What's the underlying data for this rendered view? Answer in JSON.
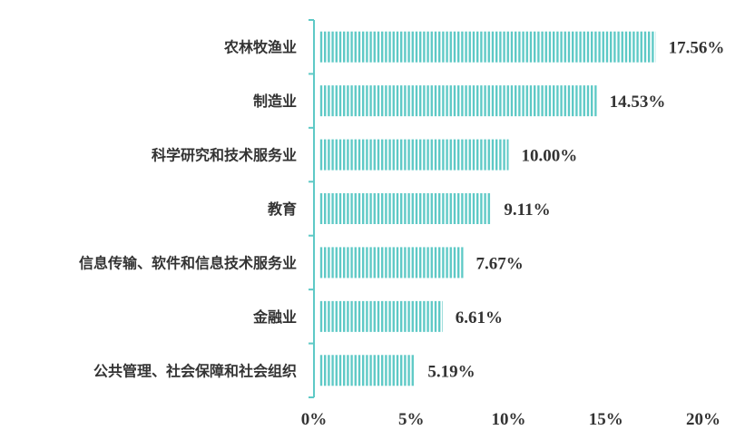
{
  "chart_data": {
    "type": "bar",
    "orientation": "horizontal",
    "categories": [
      "农林牧渔业",
      "制造业",
      "科学研究和技术服务业",
      "教育",
      "信息传输、软件和信息技术服务业",
      "金融业",
      "公共管理、社会保障和社会组织"
    ],
    "values": [
      17.56,
      14.53,
      10.0,
      9.11,
      7.67,
      6.61,
      5.19
    ],
    "data_labels": [
      "17.56%",
      "14.53%",
      "10.00%",
      "9.11%",
      "7.67%",
      "6.61%",
      "5.19%"
    ],
    "x_ticks": [
      "0%",
      "5%",
      "10%",
      "15%",
      "20%"
    ],
    "xlim": [
      0,
      20
    ],
    "grid": false,
    "legend": "none",
    "bar_pattern": "vertical-stripes",
    "colors": {
      "bar": "#5ec9c6",
      "axis": "#5ec9c6",
      "text": "#333333"
    }
  }
}
